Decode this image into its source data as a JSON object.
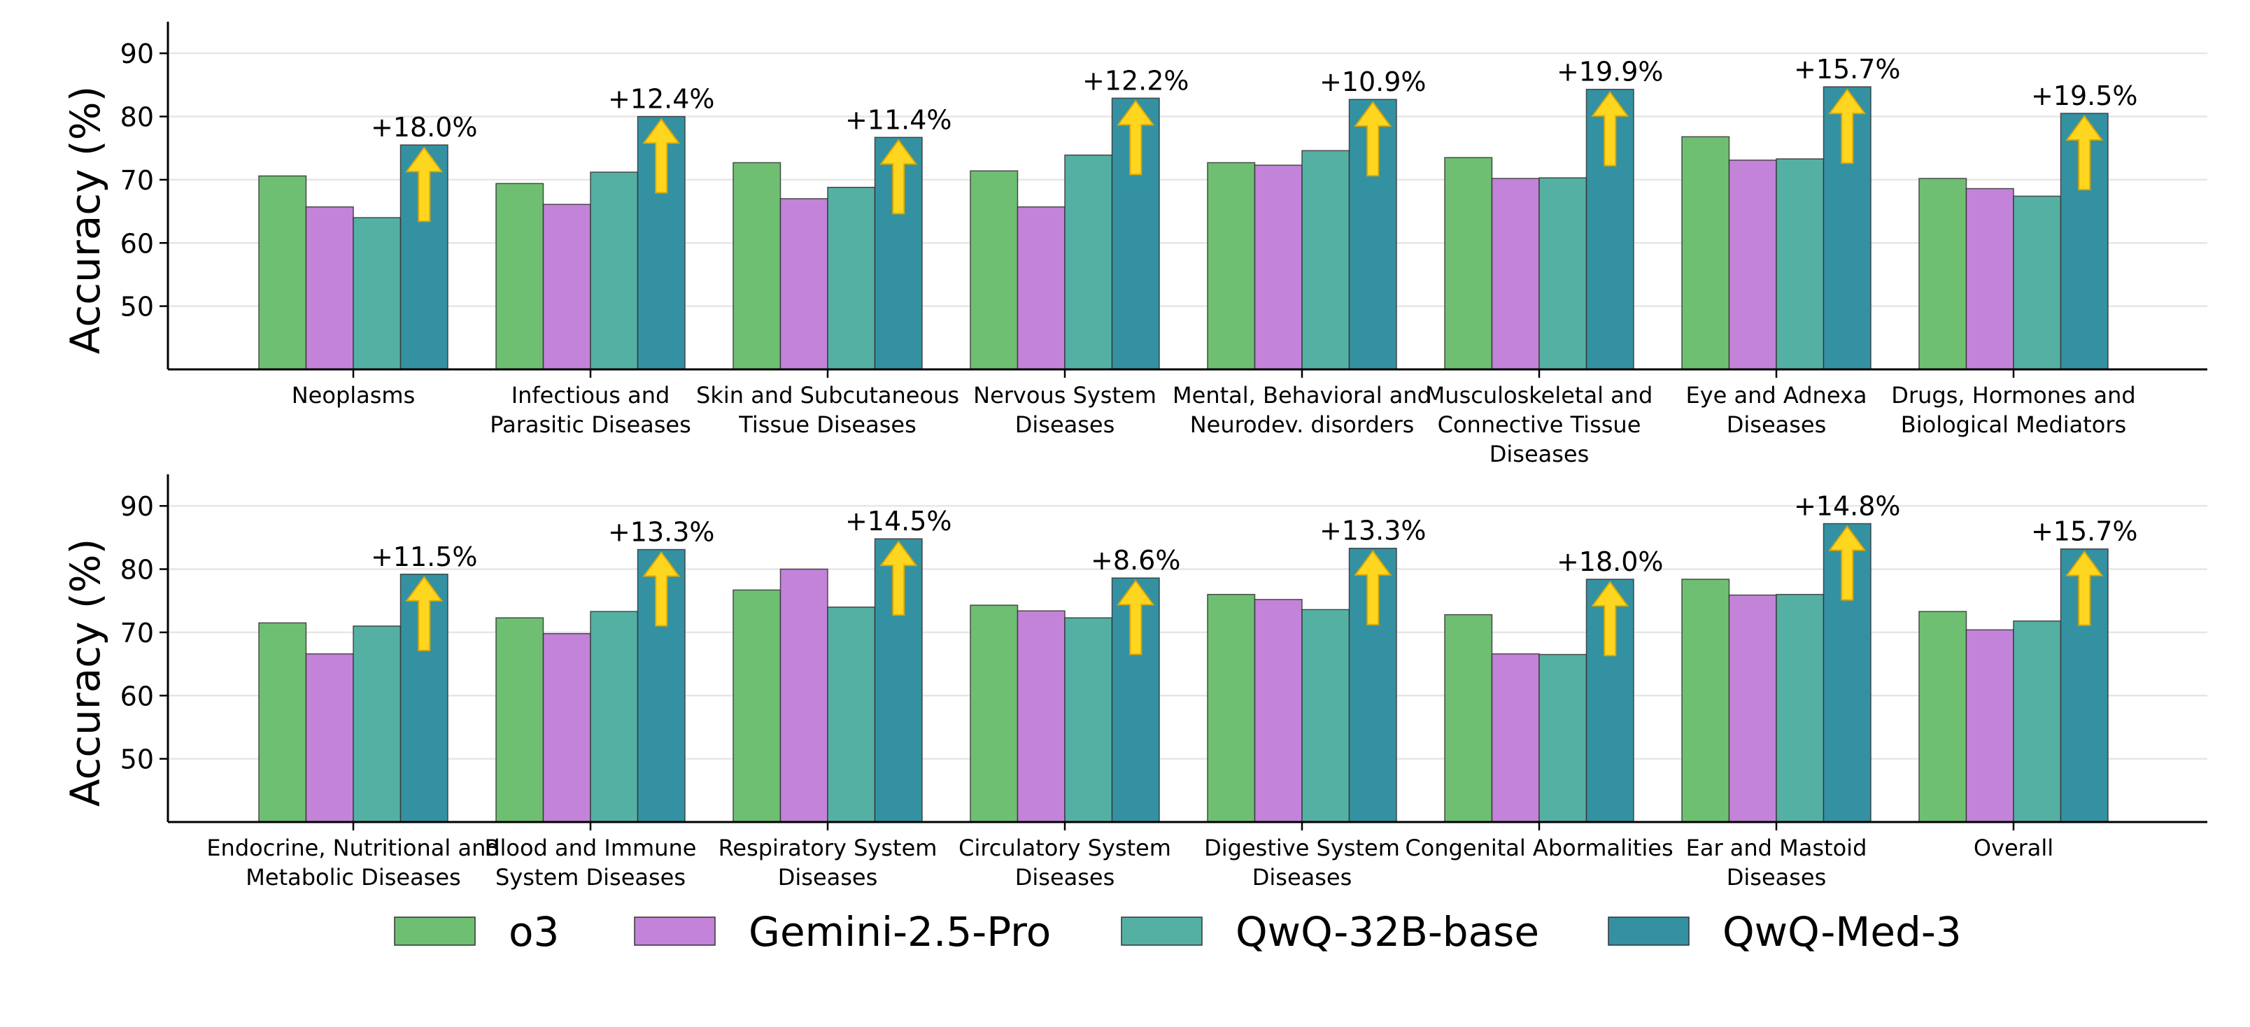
{
  "chart_data": [
    {
      "type": "bar",
      "panel": "top",
      "title": "",
      "xlabel": "",
      "ylabel": "Accuracy (%)",
      "ylim": [
        40,
        95
      ],
      "yticks": [
        50,
        60,
        70,
        80,
        90
      ],
      "grid": "horizontal",
      "categories": [
        [
          "Neoplasms"
        ],
        [
          "Infectious and",
          "Parasitic Diseases"
        ],
        [
          "Skin and Subcutaneous",
          "Tissue Diseases"
        ],
        [
          "Nervous System",
          "Diseases"
        ],
        [
          "Mental, Behavioral and",
          "Neurodev. disorders"
        ],
        [
          "Musculoskeletal and",
          "Connective Tissue",
          "Diseases"
        ],
        [
          "Eye and Adnexa",
          "Diseases"
        ],
        [
          "Drugs, Hormones and",
          "Biological Mediators"
        ]
      ],
      "series": [
        {
          "name": "o3",
          "values": [
            70.6,
            69.4,
            72.7,
            71.4,
            72.7,
            73.5,
            76.8,
            70.2
          ]
        },
        {
          "name": "Gemini-2.5-Pro",
          "values": [
            65.7,
            66.1,
            67.0,
            65.7,
            72.3,
            70.2,
            73.1,
            68.6
          ]
        },
        {
          "name": "QwQ-32B-base",
          "values": [
            64.0,
            71.2,
            68.8,
            73.9,
            74.6,
            70.3,
            73.3,
            67.4
          ]
        },
        {
          "name": "QwQ-Med-3",
          "values": [
            75.5,
            80.0,
            76.7,
            82.9,
            82.7,
            84.3,
            84.7,
            80.5
          ]
        }
      ],
      "annotations": [
        "+18.0%",
        "+12.4%",
        "+11.4%",
        "+12.2%",
        "+10.9%",
        "+19.9%",
        "+15.7%",
        "+19.5%"
      ]
    },
    {
      "type": "bar",
      "panel": "bottom",
      "title": "",
      "xlabel": "",
      "ylabel": "Accuracy (%)",
      "ylim": [
        40,
        95
      ],
      "yticks": [
        50,
        60,
        70,
        80,
        90
      ],
      "grid": "horizontal",
      "categories": [
        [
          "Endocrine, Nutritional and",
          "Metabolic Diseases"
        ],
        [
          "Blood and Immune",
          "System Diseases"
        ],
        [
          "Respiratory System",
          "Diseases"
        ],
        [
          "Circulatory System",
          "Diseases"
        ],
        [
          "Digestive System",
          "Diseases"
        ],
        [
          "Congenital Abormalities"
        ],
        [
          "Ear and Mastoid",
          "Diseases"
        ],
        [
          "Overall"
        ]
      ],
      "series": [
        {
          "name": "o3",
          "values": [
            71.5,
            72.3,
            76.7,
            74.3,
            76.0,
            72.8,
            78.4,
            73.3
          ]
        },
        {
          "name": "Gemini-2.5-Pro",
          "values": [
            66.6,
            69.8,
            80.0,
            73.4,
            75.2,
            66.6,
            75.9,
            70.4
          ]
        },
        {
          "name": "QwQ-32B-base",
          "values": [
            71.0,
            73.3,
            74.0,
            72.3,
            73.6,
            66.5,
            76.0,
            71.8
          ]
        },
        {
          "name": "QwQ-Med-3",
          "values": [
            79.2,
            83.1,
            84.8,
            78.6,
            83.3,
            78.4,
            87.2,
            83.2
          ]
        }
      ],
      "annotations": [
        "+11.5%",
        "+13.3%",
        "+14.5%",
        "+8.6%",
        "+13.3%",
        "+18.0%",
        "+14.8%",
        "+15.7%"
      ]
    }
  ],
  "legend": {
    "placement": "bottom-center",
    "items": [
      {
        "label": "o3",
        "color": "#6fbf73"
      },
      {
        "label": "Gemini-2.5-Pro",
        "color": "#c383d9"
      },
      {
        "label": "QwQ-32B-base",
        "color": "#55b0a4"
      },
      {
        "label": "QwQ-Med-3",
        "color": "#3491a2"
      }
    ]
  },
  "colors": {
    "series": [
      "#6fbf73",
      "#c383d9",
      "#55b0a4",
      "#3491a2"
    ],
    "arrow_fill": "#ffd61f",
    "arrow_edge": "#e0a800",
    "bar_edge": "#333333",
    "grid": "#e6e6e6"
  },
  "arrow_icon": "up-arrow-icon"
}
